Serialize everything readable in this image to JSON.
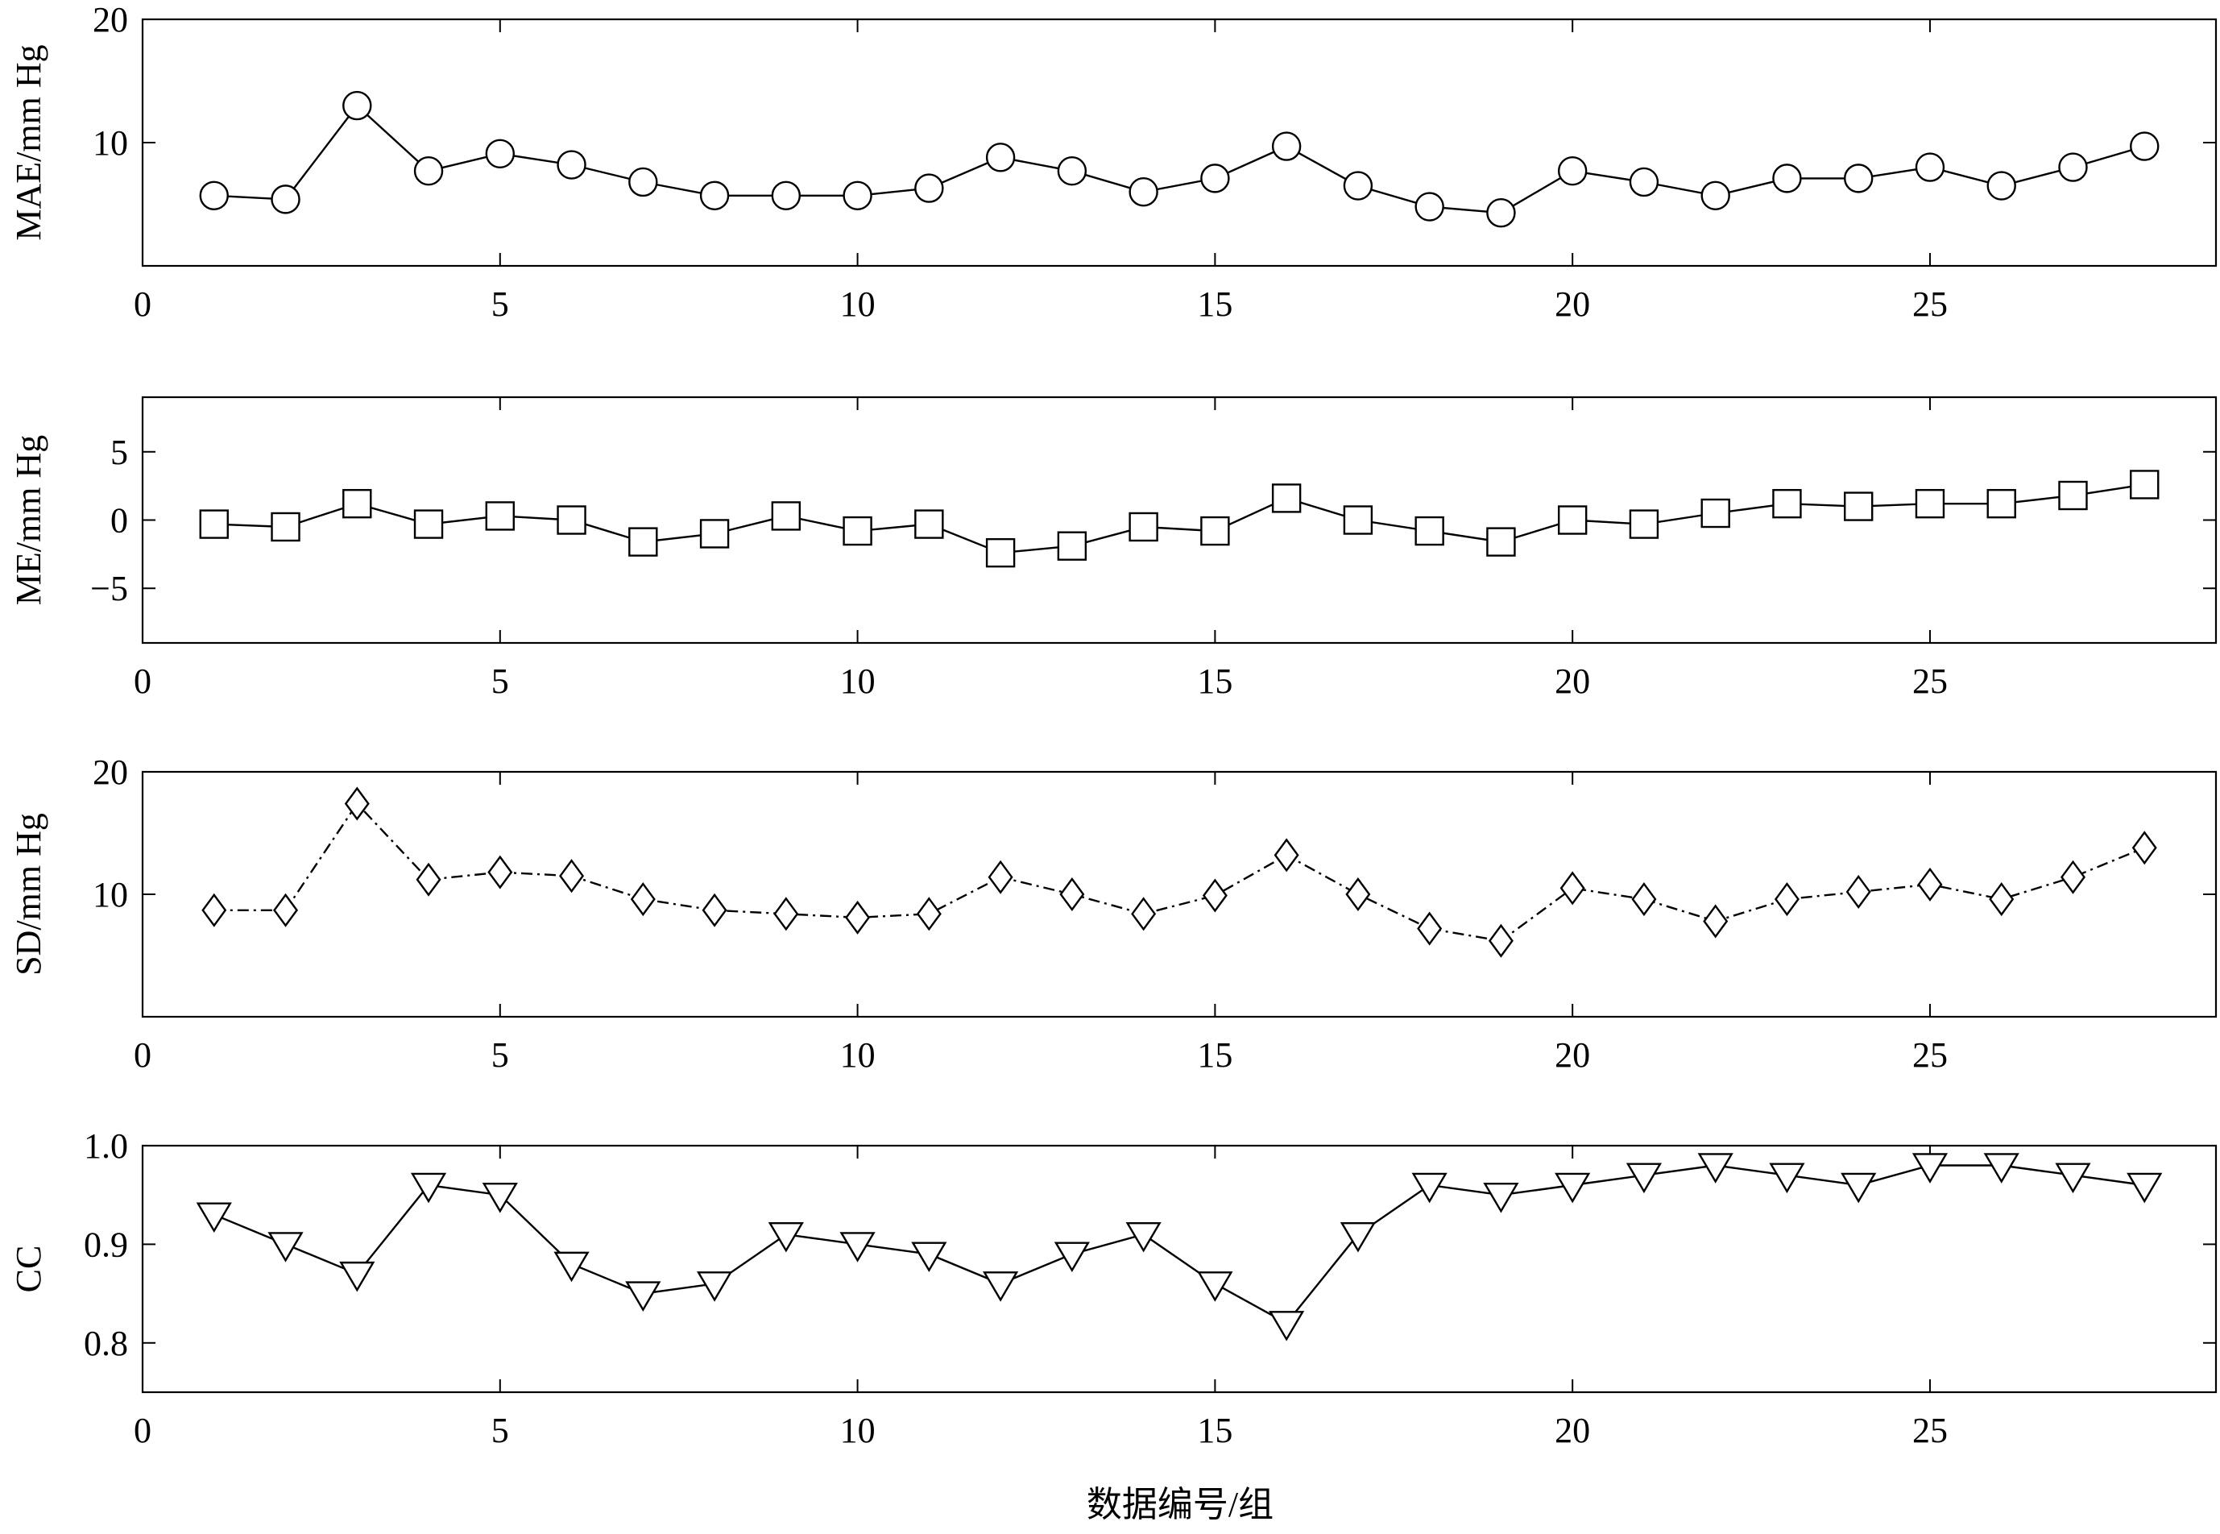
{
  "figure": {
    "xlabel": "数据编号/组"
  },
  "chart_data": [
    {
      "type": "line",
      "ylabel": "MAE/mm Hg",
      "xlim": [
        0,
        29
      ],
      "ylim": [
        0,
        20
      ],
      "yticks": [
        10,
        20
      ],
      "xticks": [
        0,
        5,
        10,
        15,
        20,
        25
      ],
      "marker": "circle",
      "linestyle": "solid",
      "x": [
        1,
        2,
        3,
        4,
        5,
        6,
        7,
        8,
        9,
        10,
        11,
        12,
        13,
        14,
        15,
        16,
        17,
        18,
        19,
        20,
        21,
        22,
        23,
        24,
        25,
        26,
        27,
        28
      ],
      "values": [
        5.7,
        5.4,
        13.0,
        7.7,
        9.1,
        8.2,
        6.8,
        5.7,
        5.7,
        5.7,
        6.3,
        8.8,
        7.7,
        6.0,
        7.1,
        9.7,
        6.5,
        4.8,
        4.3,
        7.7,
        6.8,
        5.7,
        7.1,
        7.1,
        8.0,
        6.5,
        8.0,
        9.7
      ]
    },
    {
      "type": "line",
      "ylabel": "ME/mm Hg",
      "xlim": [
        0,
        29
      ],
      "ylim": [
        -9,
        9
      ],
      "yticks": [
        -5,
        0,
        5
      ],
      "ytick_labels": [
        "−5",
        "0",
        "5"
      ],
      "xticks": [
        0,
        5,
        10,
        15,
        20,
        25
      ],
      "marker": "square",
      "linestyle": "solid",
      "x": [
        1,
        2,
        3,
        4,
        5,
        6,
        7,
        8,
        9,
        10,
        11,
        12,
        13,
        14,
        15,
        16,
        17,
        18,
        19,
        20,
        21,
        22,
        23,
        24,
        25,
        26,
        27,
        28
      ],
      "values": [
        -0.3,
        -0.5,
        1.2,
        -0.3,
        0.3,
        0.0,
        -1.6,
        -1.0,
        0.3,
        -0.8,
        -0.3,
        -2.4,
        -1.9,
        -0.5,
        -0.8,
        1.6,
        0.0,
        -0.8,
        -1.6,
        0.0,
        -0.3,
        0.5,
        1.2,
        1.0,
        1.2,
        1.2,
        1.8,
        2.6
      ]
    },
    {
      "type": "line",
      "ylabel": "SD/mm Hg",
      "xlim": [
        0,
        29
      ],
      "ylim": [
        0,
        20
      ],
      "yticks": [
        10,
        20
      ],
      "xticks": [
        0,
        5,
        10,
        15,
        20,
        25
      ],
      "marker": "diamond",
      "linestyle": "dashdot",
      "x": [
        1,
        2,
        3,
        4,
        5,
        6,
        7,
        8,
        9,
        10,
        11,
        12,
        13,
        14,
        15,
        16,
        17,
        18,
        19,
        20,
        21,
        22,
        23,
        24,
        25,
        26,
        27,
        28
      ],
      "values": [
        8.7,
        8.7,
        17.4,
        11.2,
        11.8,
        11.5,
        9.6,
        8.7,
        8.4,
        8.1,
        8.4,
        11.4,
        10.0,
        8.4,
        9.9,
        13.2,
        10.0,
        7.2,
        6.2,
        10.5,
        9.6,
        7.8,
        9.6,
        10.2,
        10.8,
        9.6,
        11.4,
        13.8
      ]
    },
    {
      "type": "line",
      "ylabel": "CC",
      "xlim": [
        0,
        29
      ],
      "ylim": [
        0.75,
        1.0
      ],
      "yticks": [
        0.8,
        0.9,
        1.0
      ],
      "ytick_labels": [
        "0.8",
        "0.9",
        "1.0"
      ],
      "xticks": [
        0,
        5,
        10,
        15,
        20,
        25
      ],
      "marker": "triangle-down",
      "linestyle": "solid",
      "x": [
        1,
        2,
        3,
        4,
        5,
        6,
        7,
        8,
        9,
        10,
        11,
        12,
        13,
        14,
        15,
        16,
        17,
        18,
        19,
        20,
        21,
        22,
        23,
        24,
        25,
        26,
        27,
        28
      ],
      "values": [
        0.93,
        0.9,
        0.87,
        0.96,
        0.95,
        0.88,
        0.85,
        0.86,
        0.91,
        0.9,
        0.89,
        0.86,
        0.89,
        0.91,
        0.86,
        0.82,
        0.91,
        0.96,
        0.95,
        0.96,
        0.97,
        0.98,
        0.97,
        0.96,
        0.98,
        0.98,
        0.97,
        0.96
      ]
    }
  ]
}
